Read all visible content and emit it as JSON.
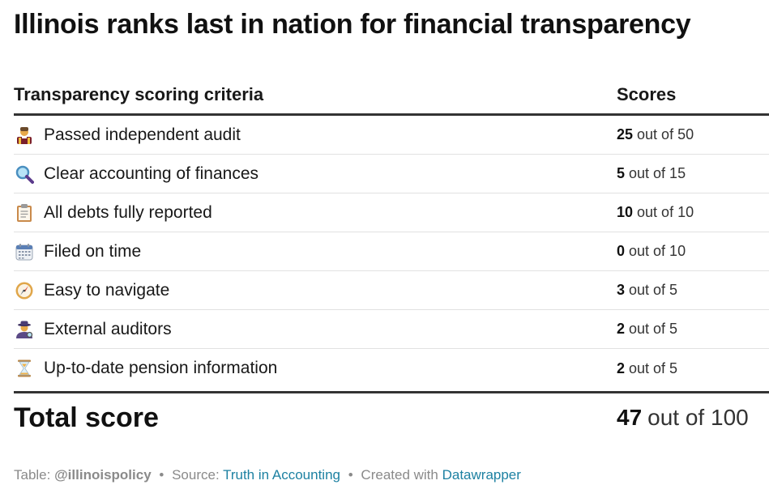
{
  "title": "Illinois ranks last in nation for financial transparency",
  "table": {
    "header": {
      "criteria": "Transparency scoring criteria",
      "scores": "Scores"
    },
    "rows": [
      {
        "icon": "judge-icon",
        "label": "Passed independent audit",
        "score": "25",
        "of": "out of 50"
      },
      {
        "icon": "magnifying-glass-icon",
        "label": "Clear accounting of finances",
        "score": "5",
        "of": "out of 15"
      },
      {
        "icon": "clipboard-icon",
        "label": "All debts fully reported",
        "score": "10",
        "of": "out of 10"
      },
      {
        "icon": "calendar-icon",
        "label": "Filed on time",
        "score": "0",
        "of": "out of 10"
      },
      {
        "icon": "compass-icon",
        "label": "Easy to navigate",
        "score": "3",
        "of": "out of 5"
      },
      {
        "icon": "detective-icon",
        "label": "External auditors",
        "score": "2",
        "of": "out of 5"
      },
      {
        "icon": "hourglass-icon",
        "label": "Up-to-date pension information",
        "score": "2",
        "of": "out of 5"
      }
    ],
    "total": {
      "label": "Total score",
      "score": "47",
      "of": "out of 100"
    }
  },
  "footer": {
    "table_prefix": "Table:",
    "table_author": "@illinoispolicy",
    "source_prefix": "Source:",
    "source_link": "Truth in Accounting",
    "created_prefix": "Created with",
    "created_link": "Datawrapper",
    "separator": "•",
    "link_color": "#1d81a2"
  }
}
